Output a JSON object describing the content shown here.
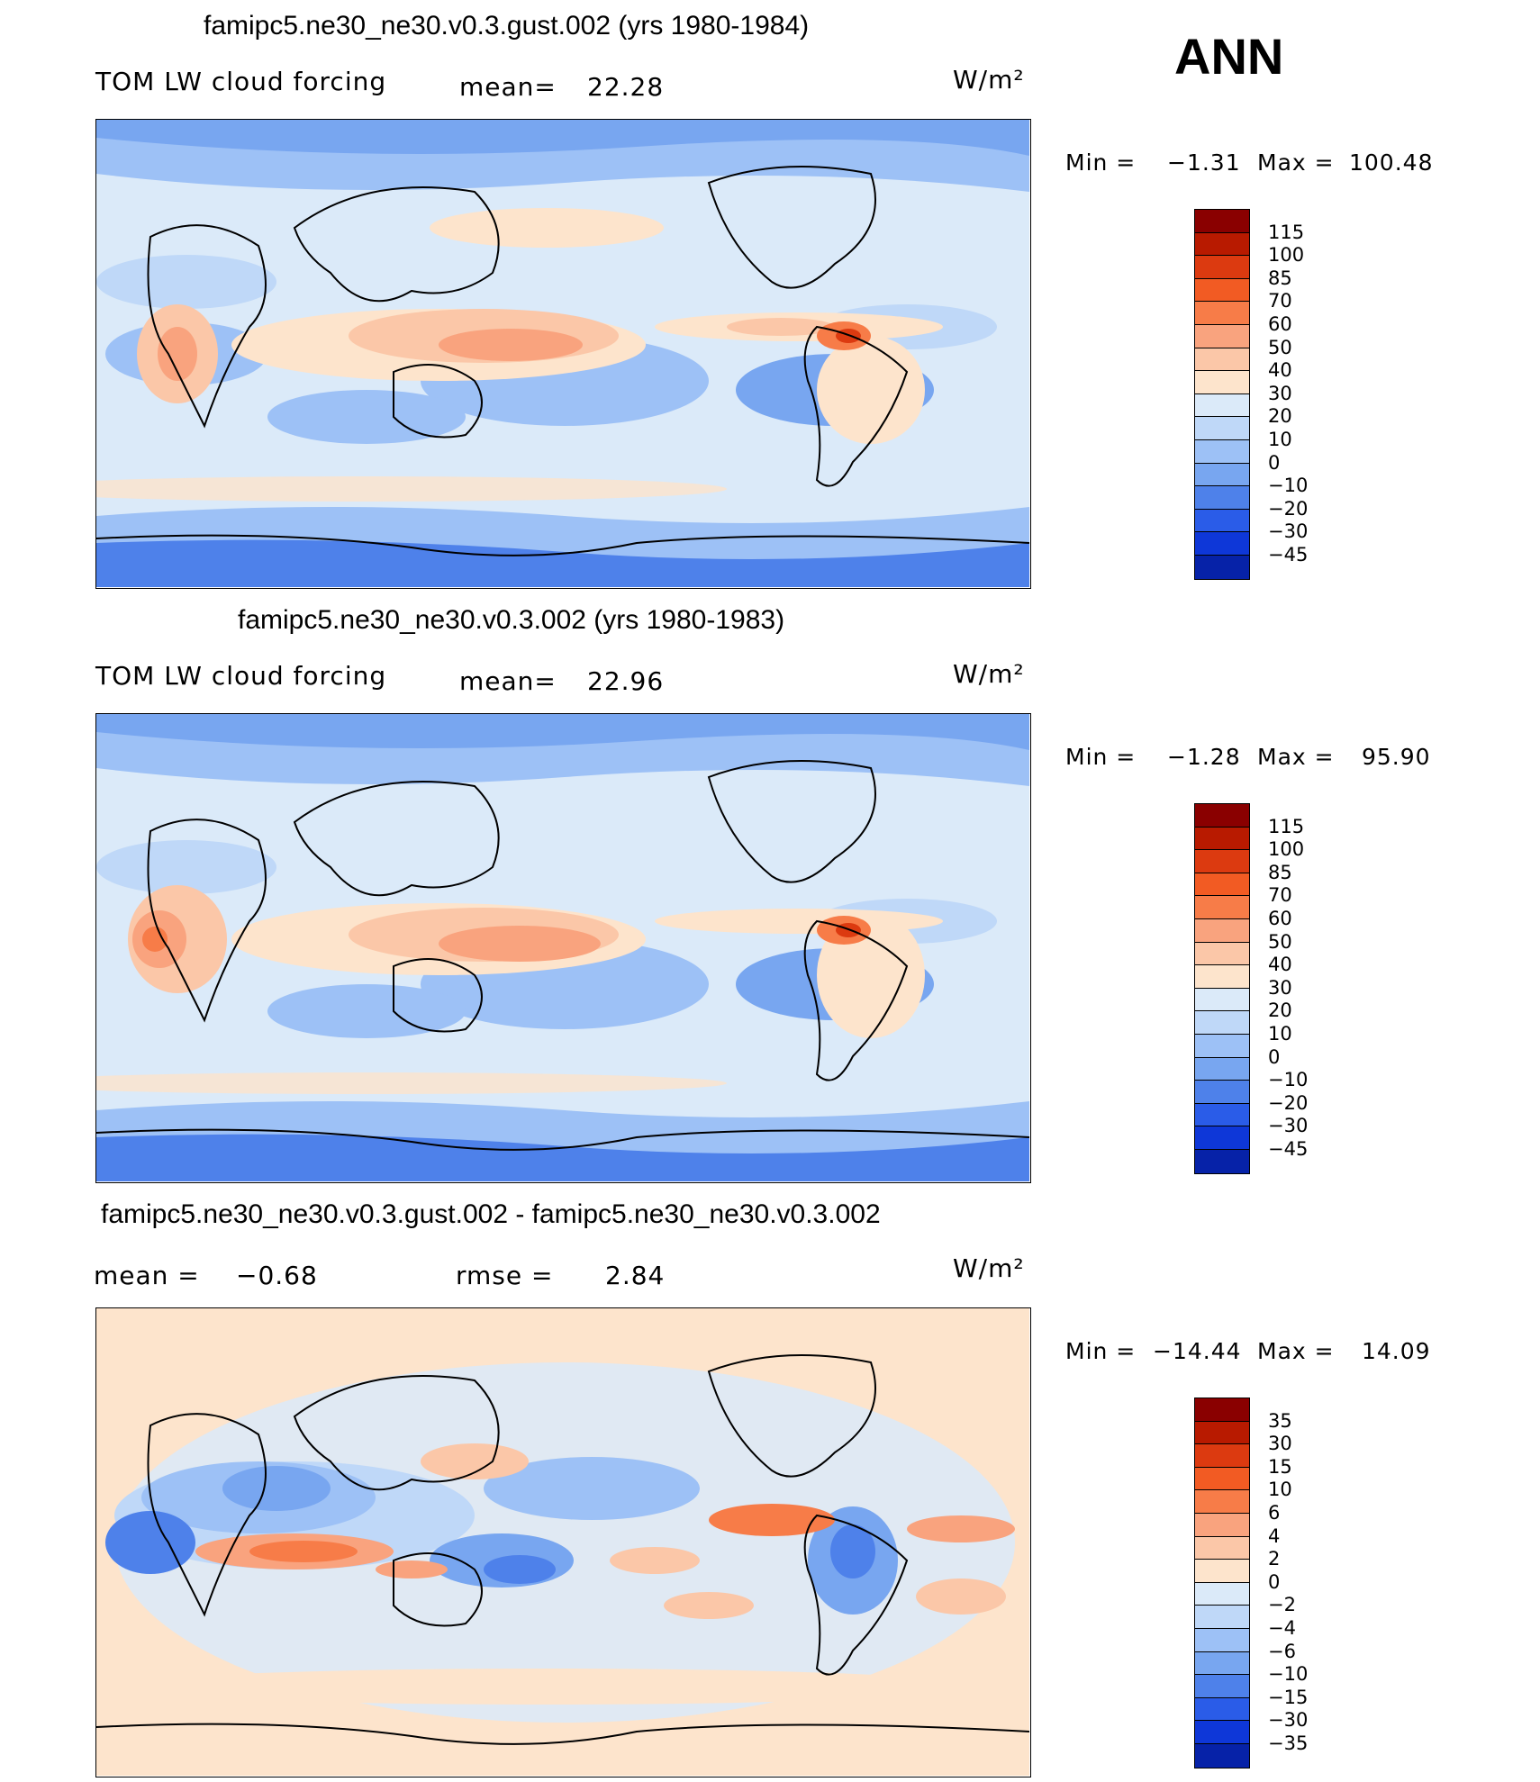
{
  "season": "ANN",
  "units": "W/m²",
  "panels": [
    {
      "title": "famipc5.ne30_ne30.v0.3.gust.002 (yrs 1980-1984)",
      "left_label": "TOM LW cloud forcing",
      "mid_label": "mean=",
      "mid_value": "22.28",
      "min_label": "Min =",
      "min_value": "−1.31",
      "max_label": "Max =",
      "max_value": "100.48"
    },
    {
      "title": "famipc5.ne30_ne30.v0.3.002 (yrs 1980-1983)",
      "left_label": "TOM LW cloud forcing",
      "mid_label": "mean=",
      "mid_value": "22.96",
      "min_label": "Min =",
      "min_value": "−1.28",
      "max_label": "Max =",
      "max_value": "95.90"
    },
    {
      "title": "famipc5.ne30_ne30.v0.3.gust.002 - famipc5.ne30_ne30.v0.3.002",
      "left_label": "mean =",
      "left_value": "−0.68",
      "mid_label": "rmse =",
      "mid_value": "2.84",
      "min_label": "Min =",
      "min_value": "−14.44",
      "max_label": "Max =",
      "max_value": "14.09"
    }
  ],
  "colorbars": {
    "field": {
      "levels": [
        "115",
        "100",
        "85",
        "70",
        "60",
        "50",
        "40",
        "30",
        "20",
        "10",
        "0",
        "−10",
        "−20",
        "−30",
        "−45"
      ],
      "colors": [
        "#8a0000",
        "#b81a00",
        "#dc3a10",
        "#f25b23",
        "#f77c48",
        "#f9a37e",
        "#fbc7a8",
        "#fde4cc",
        "#dbeaf9",
        "#bfd8f8",
        "#9dc1f6",
        "#78a6f0",
        "#4e81ea",
        "#2a5ce8",
        "#0e37d8",
        "#0622a8"
      ]
    },
    "diff": {
      "levels": [
        "35",
        "30",
        "15",
        "10",
        "6",
        "4",
        "2",
        "0",
        "−2",
        "−4",
        "−6",
        "−10",
        "−15",
        "−30",
        "−35"
      ],
      "colors": [
        "#8a0000",
        "#b81a00",
        "#dc3a10",
        "#f25b23",
        "#f77c48",
        "#f9a37e",
        "#fbc7a8",
        "#fde4cc",
        "#dbeaf9",
        "#bfd8f8",
        "#9dc1f6",
        "#78a6f0",
        "#4e81ea",
        "#2a5ce8",
        "#0e37d8",
        "#0622a8"
      ]
    }
  },
  "chart_data": [
    {
      "type": "heatmap",
      "title": "famipc5.ne30_ne30.v0.3.gust.002 (yrs 1980-1984)",
      "variable": "TOM LW cloud forcing",
      "units": "W/m²",
      "mean": 22.28,
      "min": -1.31,
      "max": 100.48,
      "contour_levels": [
        -45,
        -30,
        -20,
        -10,
        0,
        10,
        20,
        30,
        40,
        50,
        60,
        70,
        85,
        100,
        115
      ]
    },
    {
      "type": "heatmap",
      "title": "famipc5.ne30_ne30.v0.3.002 (yrs 1980-1983)",
      "variable": "TOM LW cloud forcing",
      "units": "W/m²",
      "mean": 22.96,
      "min": -1.28,
      "max": 95.9,
      "contour_levels": [
        -45,
        -30,
        -20,
        -10,
        0,
        10,
        20,
        30,
        40,
        50,
        60,
        70,
        85,
        100,
        115
      ]
    },
    {
      "type": "heatmap",
      "title": "famipc5.ne30_ne30.v0.3.gust.002 - famipc5.ne30_ne30.v0.3.002",
      "units": "W/m²",
      "mean": -0.68,
      "rmse": 2.84,
      "min": -14.44,
      "max": 14.09,
      "contour_levels": [
        -35,
        -30,
        -15,
        -10,
        -6,
        -4,
        -2,
        0,
        2,
        4,
        6,
        10,
        15,
        30,
        35
      ]
    }
  ]
}
